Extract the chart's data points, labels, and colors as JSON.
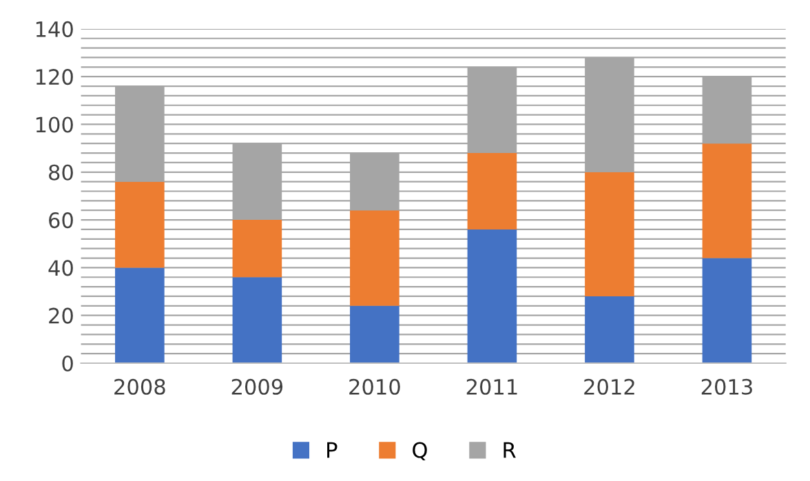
{
  "chart_data": {
    "type": "bar",
    "stacked": true,
    "categories": [
      "2008",
      "2009",
      "2010",
      "2011",
      "2012",
      "2013"
    ],
    "series": [
      {
        "name": "P",
        "color": "#4472c4",
        "values": [
          40,
          36,
          24,
          56,
          28,
          44
        ]
      },
      {
        "name": "Q",
        "color": "#ed7d31",
        "values": [
          36,
          24,
          40,
          32,
          52,
          48
        ]
      },
      {
        "name": "R",
        "color": "#a5a5a5",
        "values": [
          40,
          32,
          24,
          36,
          48,
          28
        ]
      }
    ],
    "ylim": [
      0,
      140
    ],
    "yticks": [
      0,
      {
        "value": 4,
        "label": null
      },
      {
        "value": 8,
        "label": null
      },
      {
        "value": 12,
        "label": null
      },
      {
        "value": 16,
        "label": null
      },
      20,
      {
        "value": 24,
        "label": null
      },
      {
        "value": 28,
        "label": null
      },
      {
        "value": 32,
        "label": null
      },
      {
        "value": 36,
        "label": null
      },
      40,
      {
        "value": 44,
        "label": null
      },
      {
        "value": 48,
        "label": null
      },
      {
        "value": 52,
        "label": null
      },
      {
        "value": 56,
        "label": null
      },
      60,
      {
        "value": 64,
        "label": null
      },
      {
        "value": 68,
        "label": null
      },
      {
        "value": 72,
        "label": null
      },
      {
        "value": 76,
        "label": null
      },
      80,
      {
        "value": 84,
        "label": null
      },
      {
        "value": 88,
        "label": null
      },
      {
        "value": 92,
        "label": null
      },
      {
        "value": 96,
        "label": null
      },
      100,
      {
        "value": 104,
        "label": null
      },
      {
        "value": 108,
        "label": null
      },
      {
        "value": 112,
        "label": null
      },
      {
        "value": 116,
        "label": null
      },
      120,
      {
        "value": 124,
        "label": null
      },
      {
        "value": 128,
        "label": null
      },
      {
        "value": 132,
        "label": null
      },
      {
        "value": 136,
        "label": null
      },
      140
    ],
    "grid": "y",
    "legend": "bottom"
  }
}
